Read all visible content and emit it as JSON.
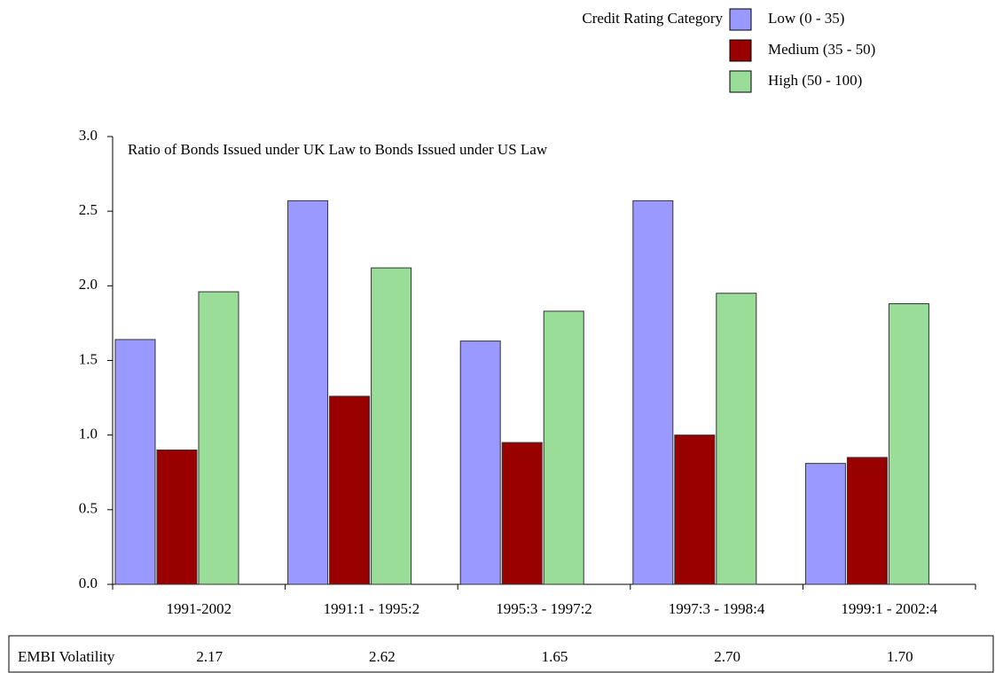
{
  "chart_data": {
    "type": "bar",
    "title": "Ratio of Bonds Issued under UK Law to Bonds Issued under US Law",
    "legend_title": "Credit Rating Category",
    "legend": "top-right",
    "categories": [
      "1991-2002",
      "1991:1 - 1995:2",
      "1995:3 - 1997:2",
      "1997:3 - 1998:4",
      "1999:1 - 2002:4"
    ],
    "series": [
      {
        "name": "Low (0 - 35)",
        "color": "#9999ff",
        "values": [
          1.64,
          2.57,
          1.63,
          2.57,
          0.81
        ]
      },
      {
        "name": "Medium (35 - 50)",
        "color": "#990000",
        "values": [
          0.9,
          1.26,
          0.95,
          1.0,
          0.85
        ]
      },
      {
        "name": "High (50 - 100)",
        "color": "#99dd99",
        "values": [
          1.96,
          2.12,
          1.83,
          1.95,
          1.88
        ]
      }
    ],
    "ylim": [
      0,
      3
    ],
    "yticks": [
      {
        "value": 0,
        "label": "0.0"
      },
      0.5,
      {
        "value": 1,
        "label": "1.0"
      },
      1.5,
      {
        "value": 2,
        "label": "2.0"
      },
      2.5,
      {
        "value": 3,
        "label": "3.0"
      }
    ],
    "table": {
      "row_label": "EMBI Volatility",
      "values": [
        2.17,
        2.62,
        1.65,
        2.7,
        1.7
      ],
      "value_labels": [
        "2.17",
        "2.62",
        "1.65",
        "2.70",
        "1.70"
      ]
    }
  }
}
